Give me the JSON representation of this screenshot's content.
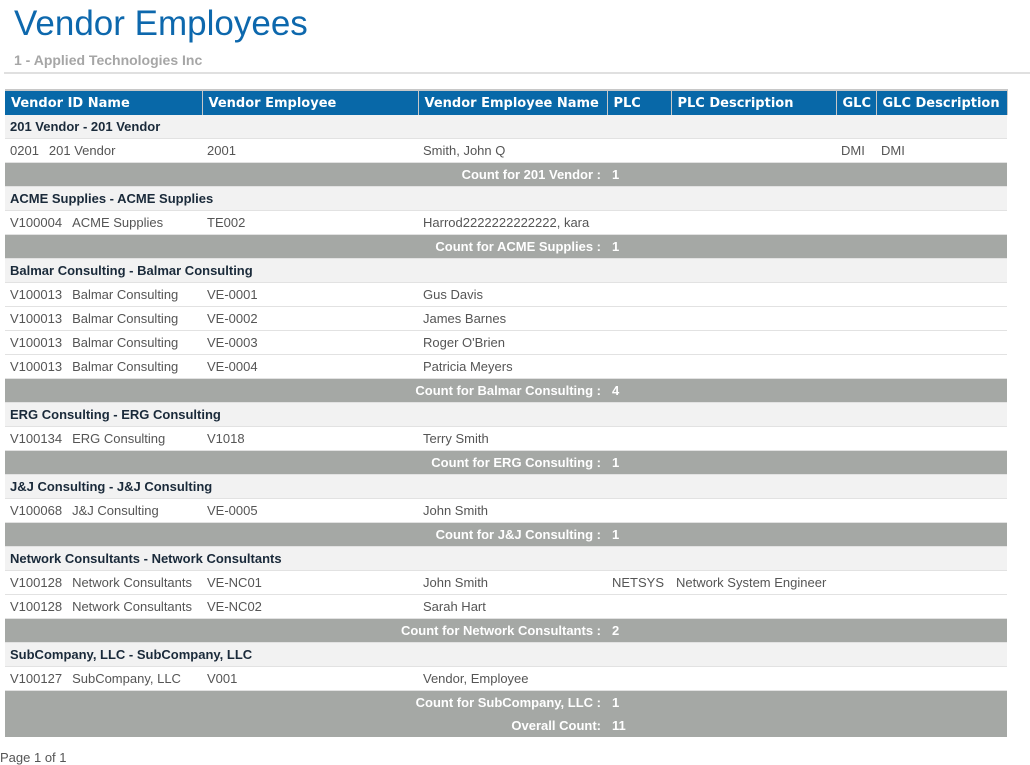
{
  "header": {
    "title": "Vendor Employees",
    "subtitle": "1 - Applied Technologies Inc"
  },
  "colors": {
    "header_bg": "#0868a8",
    "count_bg": "#a5a8a5"
  },
  "columns": [
    "Vendor ID Name",
    "Vendor Employee",
    "Vendor Employee Name",
    "PLC",
    "PLC Description",
    "GLC",
    "GLC Description"
  ],
  "groups": [
    {
      "title": "201 Vendor - 201 Vendor",
      "count_label": "Count for 201 Vendor :",
      "count": "1",
      "rows": [
        {
          "id": "0201",
          "name": "201 Vendor",
          "emp": "2001",
          "emp_name": "Smith, John Q",
          "plc": "",
          "plc_desc": "",
          "glc": "DMI",
          "glc_desc": "DMI"
        }
      ]
    },
    {
      "title": "ACME Supplies - ACME Supplies",
      "count_label": "Count for ACME Supplies :",
      "count": "1",
      "rows": [
        {
          "id": "V100004",
          "name": "ACME Supplies",
          "emp": "TE002",
          "emp_name": "Harrod2222222222222, kara",
          "plc": "",
          "plc_desc": "",
          "glc": "",
          "glc_desc": ""
        }
      ]
    },
    {
      "title": "Balmar Consulting - Balmar Consulting",
      "count_label": "Count for Balmar Consulting :",
      "count": "4",
      "rows": [
        {
          "id": "V100013",
          "name": "Balmar Consulting",
          "emp": "VE-0001",
          "emp_name": "Gus Davis",
          "plc": "",
          "plc_desc": "",
          "glc": "",
          "glc_desc": ""
        },
        {
          "id": "V100013",
          "name": "Balmar Consulting",
          "emp": "VE-0002",
          "emp_name": "James Barnes",
          "plc": "",
          "plc_desc": "",
          "glc": "",
          "glc_desc": ""
        },
        {
          "id": "V100013",
          "name": "Balmar Consulting",
          "emp": "VE-0003",
          "emp_name": "Roger O'Brien",
          "plc": "",
          "plc_desc": "",
          "glc": "",
          "glc_desc": ""
        },
        {
          "id": "V100013",
          "name": "Balmar Consulting",
          "emp": "VE-0004",
          "emp_name": "Patricia Meyers",
          "plc": "",
          "plc_desc": "",
          "glc": "",
          "glc_desc": ""
        }
      ]
    },
    {
      "title": "ERG Consulting - ERG Consulting",
      "count_label": "Count for ERG Consulting :",
      "count": "1",
      "rows": [
        {
          "id": "V100134",
          "name": "ERG Consulting",
          "emp": "V1018",
          "emp_name": "Terry Smith",
          "plc": "",
          "plc_desc": "",
          "glc": "",
          "glc_desc": ""
        }
      ]
    },
    {
      "title": "J&J Consulting - J&J Consulting",
      "count_label": "Count for J&J Consulting :",
      "count": "1",
      "rows": [
        {
          "id": "V100068",
          "name": "J&J Consulting",
          "emp": "VE-0005",
          "emp_name": "John Smith",
          "plc": "",
          "plc_desc": "",
          "glc": "",
          "glc_desc": ""
        }
      ]
    },
    {
      "title": "Network Consultants - Network Consultants",
      "count_label": "Count for Network Consultants :",
      "count": "2",
      "rows": [
        {
          "id": "V100128",
          "name": "Network Consultants",
          "emp": "VE-NC01",
          "emp_name": "John Smith",
          "plc": "NETSYS",
          "plc_desc": "Network System Engineer",
          "glc": "",
          "glc_desc": ""
        },
        {
          "id": "V100128",
          "name": "Network Consultants",
          "emp": "VE-NC02",
          "emp_name": "Sarah Hart",
          "plc": "",
          "plc_desc": "",
          "glc": "",
          "glc_desc": ""
        }
      ]
    },
    {
      "title": "SubCompany, LLC - SubCompany, LLC",
      "count_label": "Count for SubCompany, LLC :",
      "count": "1",
      "rows": [
        {
          "id": "V100127",
          "name": "SubCompany, LLC",
          "emp": "V001",
          "emp_name": "Vendor, Employee",
          "plc": "",
          "plc_desc": "",
          "glc": "",
          "glc_desc": ""
        }
      ]
    }
  ],
  "overall": {
    "label": "Overall Count:",
    "count": "11"
  },
  "footer": {
    "pager": "Page 1 of 1"
  }
}
